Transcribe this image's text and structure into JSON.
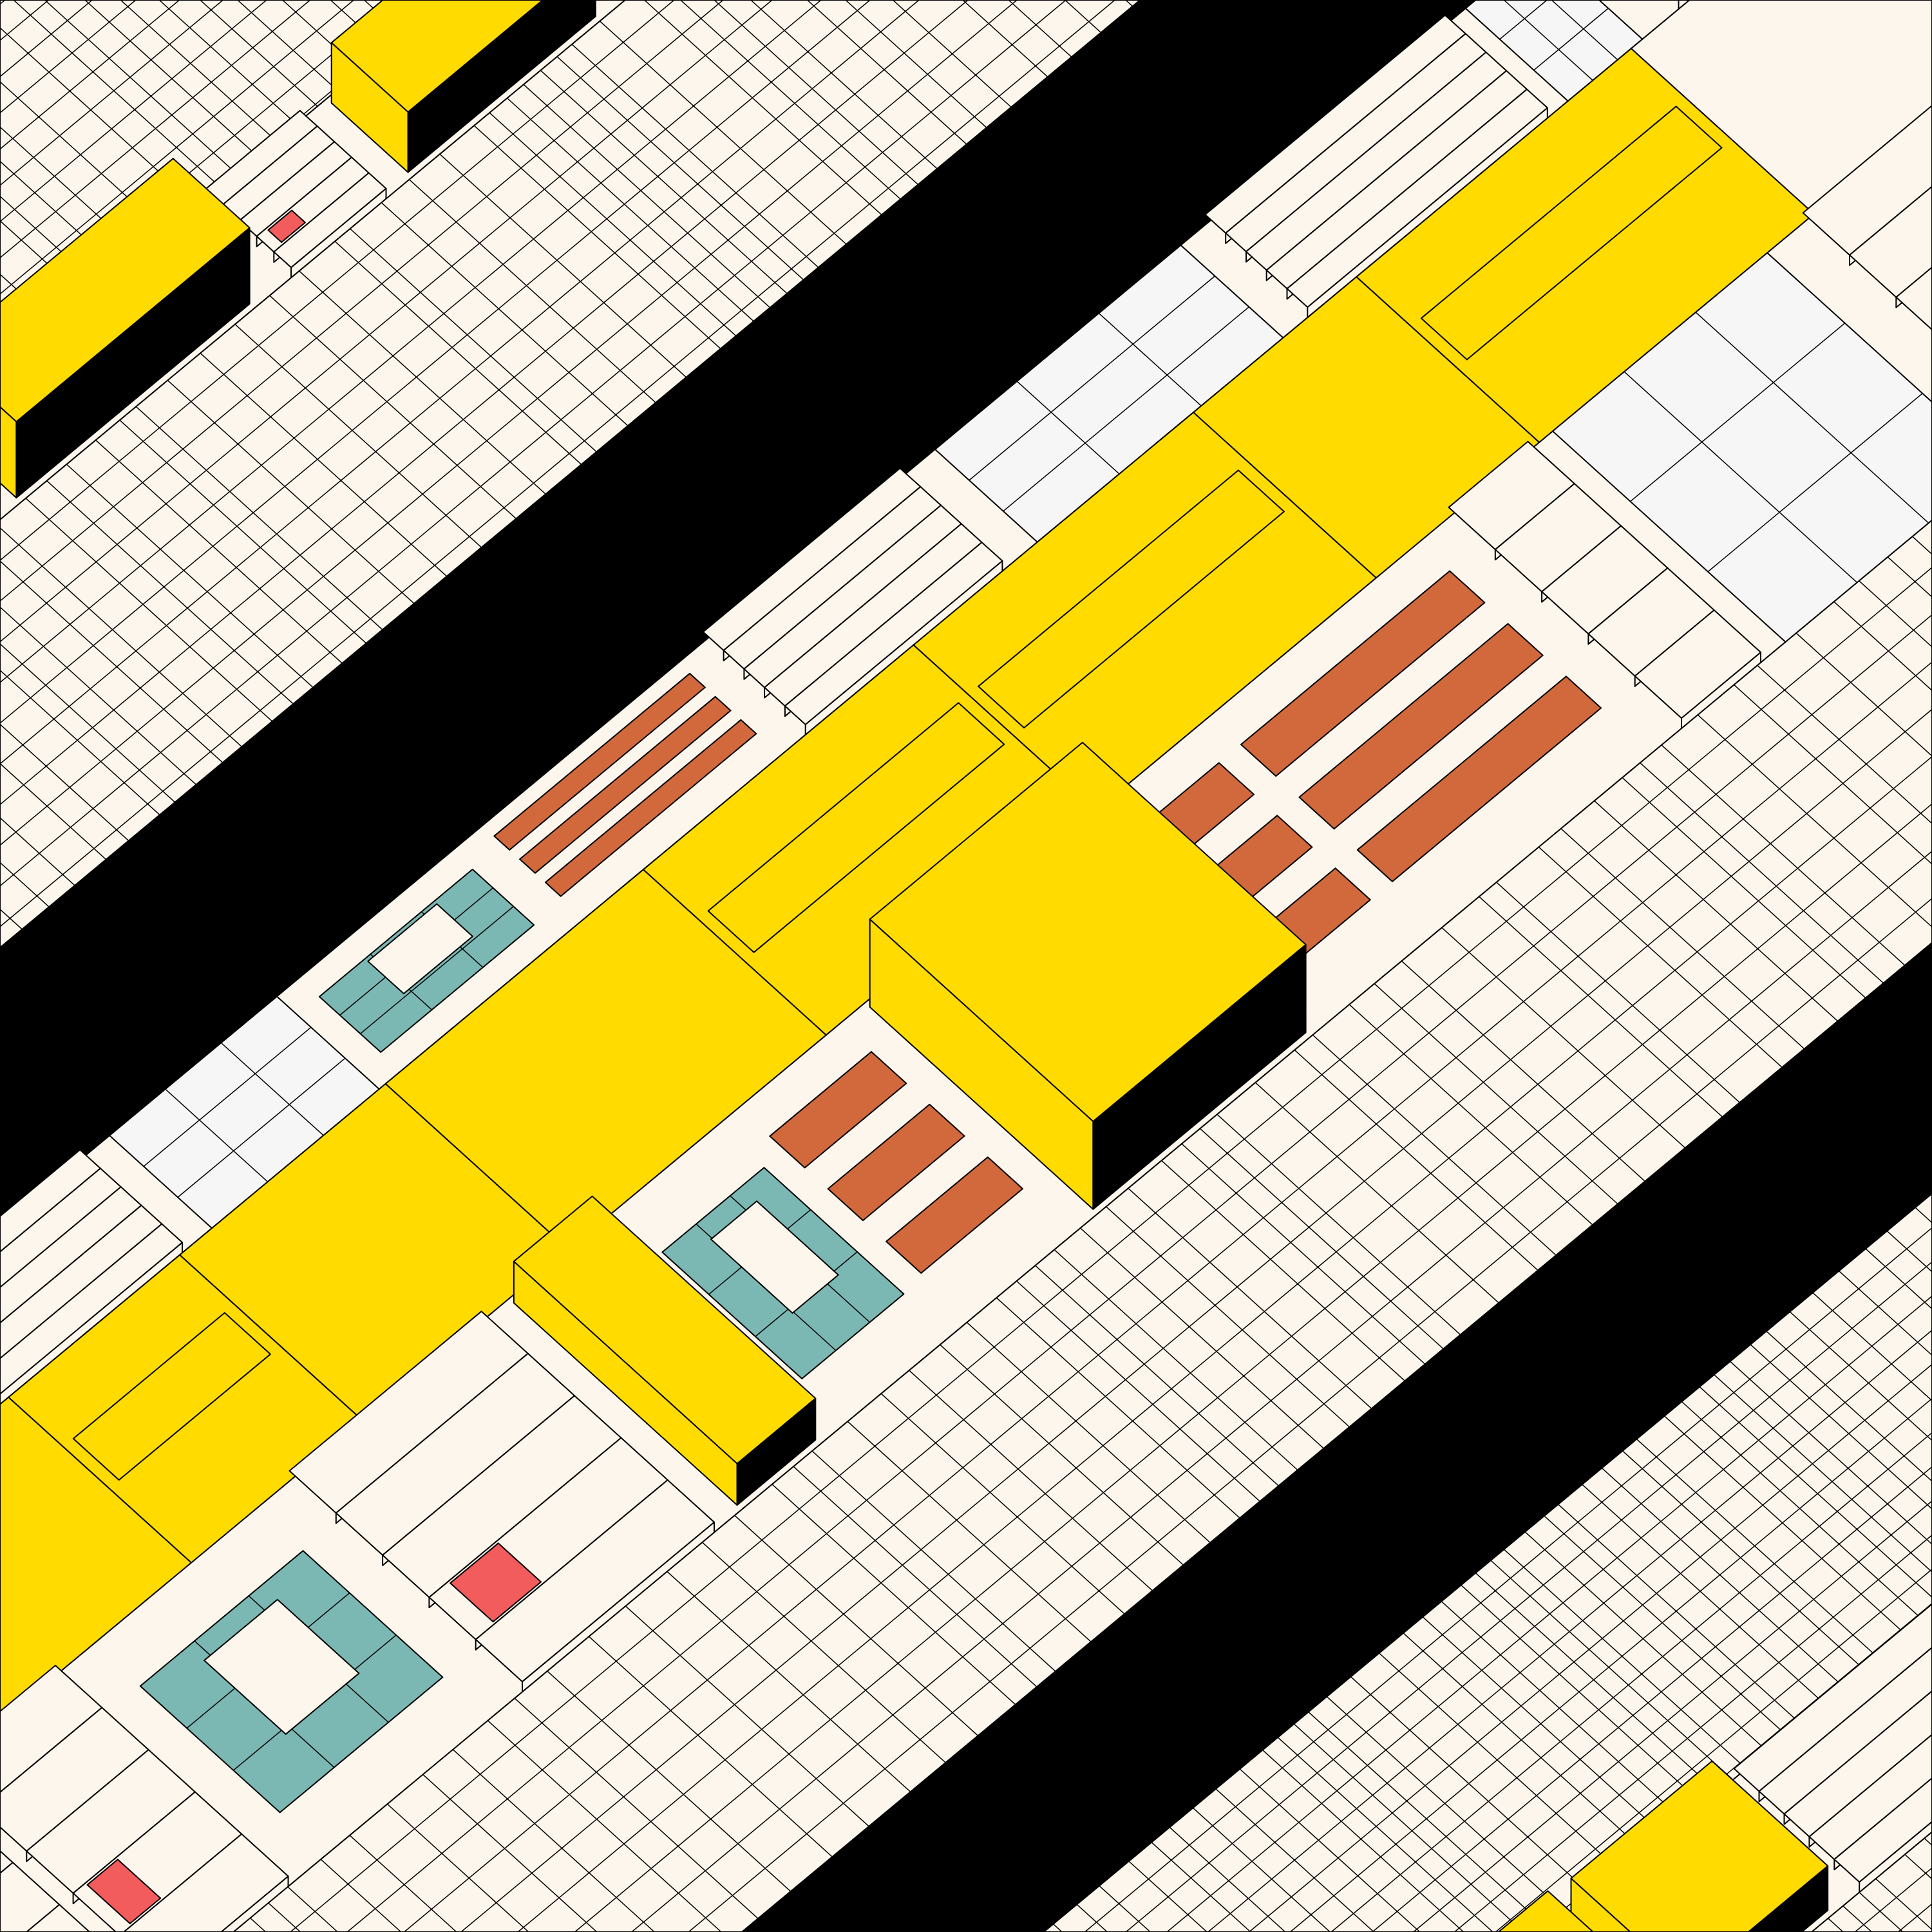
{
  "palette": {
    "background": "#FCF6EC",
    "ink": "#000000",
    "yellow": "#FFDB00",
    "white": "#F6F6F6",
    "teal": "#7BB8B4",
    "orange": "#D2693C",
    "red": "#F25C5C"
  }
}
